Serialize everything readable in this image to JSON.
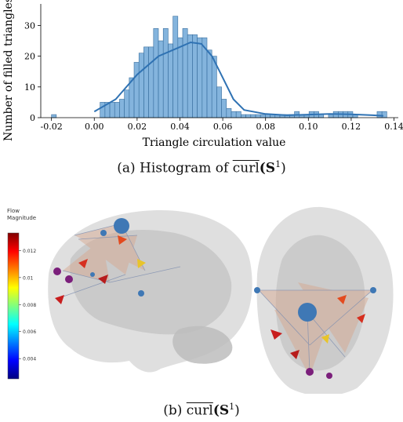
{
  "chart_data": [
    {
      "type": "bar",
      "xlabel": "Triangle circulation value",
      "ylabel": "Number of filled triangles",
      "xlim": [
        -0.025,
        0.142
      ],
      "ylim": [
        0,
        37
      ],
      "xticks": [
        "-0.02",
        "0.00",
        "0.02",
        "0.04",
        "0.06",
        "0.08",
        "0.10",
        "0.12",
        "0.14"
      ],
      "xtick_values": [
        -0.02,
        0.0,
        0.02,
        0.04,
        0.06,
        0.08,
        0.1,
        0.12,
        0.14
      ],
      "yticks": [
        "0",
        "10",
        "20",
        "30"
      ],
      "ytick_values": [
        0,
        10,
        20,
        30
      ],
      "bin_width": 0.00227,
      "bin_start": -0.02,
      "counts": [
        1,
        0,
        0,
        0,
        0,
        0,
        0,
        0,
        0,
        0,
        5,
        5,
        5,
        5,
        6,
        9,
        13,
        18,
        21,
        23,
        23,
        29,
        25,
        29,
        24,
        33,
        26,
        29,
        27,
        27,
        26,
        26,
        22,
        20,
        10,
        6,
        3,
        2,
        2,
        1,
        1,
        1,
        1,
        1,
        1,
        1,
        1,
        1,
        1,
        1,
        2,
        1,
        1,
        2,
        2,
        1,
        0,
        1,
        2,
        2,
        2,
        2,
        1,
        0,
        0,
        0,
        0,
        2,
        2
      ],
      "kde_x": [
        0.0,
        0.01,
        0.02,
        0.03,
        0.04,
        0.045,
        0.05,
        0.055,
        0.06,
        0.065,
        0.07,
        0.08,
        0.09,
        0.1,
        0.11,
        0.12,
        0.13,
        0.135
      ],
      "kde_y": [
        2,
        6,
        14,
        20,
        23,
        24.5,
        24,
        20,
        13,
        6,
        2.5,
        1.2,
        0.8,
        1.0,
        1.2,
        1.1,
        0.8,
        0.6
      ],
      "bar_color": "#5b9bd1",
      "line_color": "#2f72b3"
    }
  ],
  "captions": {
    "a_prefix": "(a)  Histogram of ",
    "a_op": "curl",
    "a_arg": "(S",
    "a_sup": "1",
    "a_close": ")",
    "b_prefix": "(b) ",
    "b_op": "curl",
    "b_arg": "(S",
    "b_sup": "1",
    "b_close": ")"
  },
  "colorbar": {
    "title_line1": "Flow",
    "title_line2": "Magnitude",
    "ticks": [
      "0.012",
      "0.01",
      "0.008",
      "0.006",
      "0.004"
    ],
    "tick_values": [
      0.012,
      0.01,
      0.008,
      0.006,
      0.004
    ],
    "range": [
      0.0025,
      0.0133
    ]
  }
}
